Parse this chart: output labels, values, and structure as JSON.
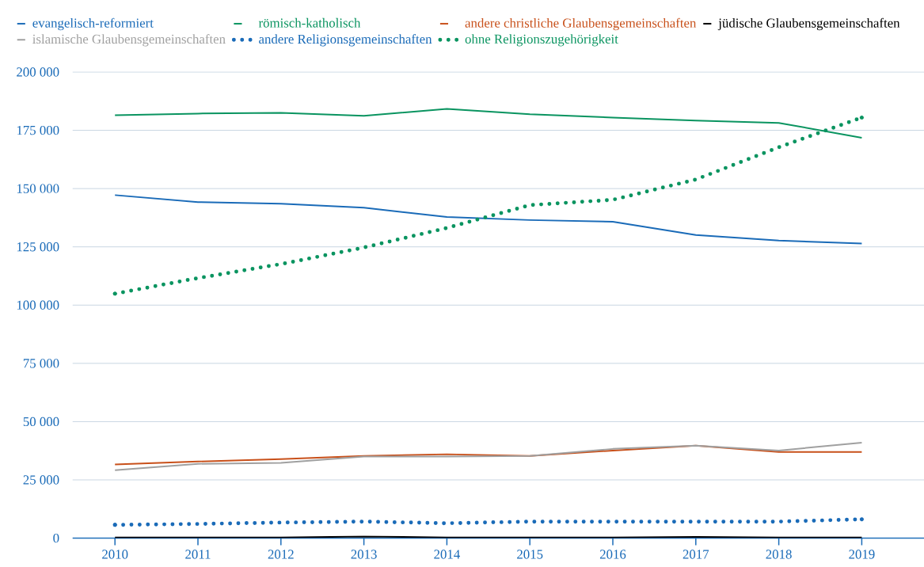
{
  "chart_data": {
    "type": "line",
    "x": [
      2010,
      2011,
      2012,
      2013,
      2014,
      2015,
      2016,
      2017,
      2018,
      2019
    ],
    "xlim": [
      2009.49,
      2019.75
    ],
    "xticks": [
      2010,
      2011,
      2012,
      2013,
      2014,
      2015,
      2016,
      2017,
      2018,
      2019
    ],
    "ylim": [
      0,
      200000
    ],
    "yticks": [
      {
        "value": 0,
        "label": "0"
      },
      {
        "value": 25000,
        "label": "25 000"
      },
      {
        "value": 50000,
        "label": "50 000"
      },
      {
        "value": 75000,
        "label": "75 000"
      },
      {
        "value": 100000,
        "label": "100 000"
      },
      {
        "value": 125000,
        "label": "125 000"
      },
      {
        "value": 150000,
        "label": "150 000"
      },
      {
        "value": 175000,
        "label": "175 000"
      },
      {
        "value": 200000,
        "label": "200 000"
      }
    ],
    "grid": "y",
    "legend": "top",
    "marker": "none",
    "series": [
      {
        "name": "evangelisch-reformiert",
        "color": "#1a6bb8",
        "line_style": "solid",
        "values": [
          147200,
          144200,
          143500,
          141800,
          137800,
          136500,
          135800,
          130100,
          127700,
          126400
        ]
      },
      {
        "name": "römisch-katholisch",
        "color": "#0a9460",
        "line_style": "solid",
        "values": [
          181500,
          182200,
          182500,
          181200,
          184200,
          181900,
          180500,
          179200,
          178200,
          171800
        ]
      },
      {
        "name": "andere christliche Glaubensgemeinschaften",
        "color": "#c8501a",
        "line_style": "solid",
        "values": [
          31600,
          32900,
          33900,
          35300,
          36000,
          35300,
          37600,
          39700,
          37000,
          37000
        ]
      },
      {
        "name": "jüdische Glaubensgemeinschaften",
        "color": "#000000",
        "line_style": "solid",
        "values": [
          300,
          300,
          300,
          700,
          300,
          300,
          300,
          500,
          300,
          300
        ]
      },
      {
        "name": "islamische Glaubensgemeinschaften",
        "color": "#a0a0a0",
        "line_style": "solid",
        "values": [
          29200,
          31900,
          32300,
          35000,
          35000,
          35300,
          38300,
          39700,
          37600,
          41000
        ]
      },
      {
        "name": "andere Religionsgemeinschaften",
        "color": "#1a6bb8",
        "line_style": "dotted",
        "values": [
          5700,
          6100,
          6700,
          7100,
          6400,
          7100,
          7100,
          7100,
          7100,
          8100
        ]
      },
      {
        "name": "ohne Religionszugehörigkeit",
        "color": "#0a9460",
        "line_style": "dotted",
        "values": [
          104900,
          111600,
          117600,
          124700,
          133100,
          142900,
          145200,
          153900,
          167700,
          180500
        ]
      }
    ]
  }
}
